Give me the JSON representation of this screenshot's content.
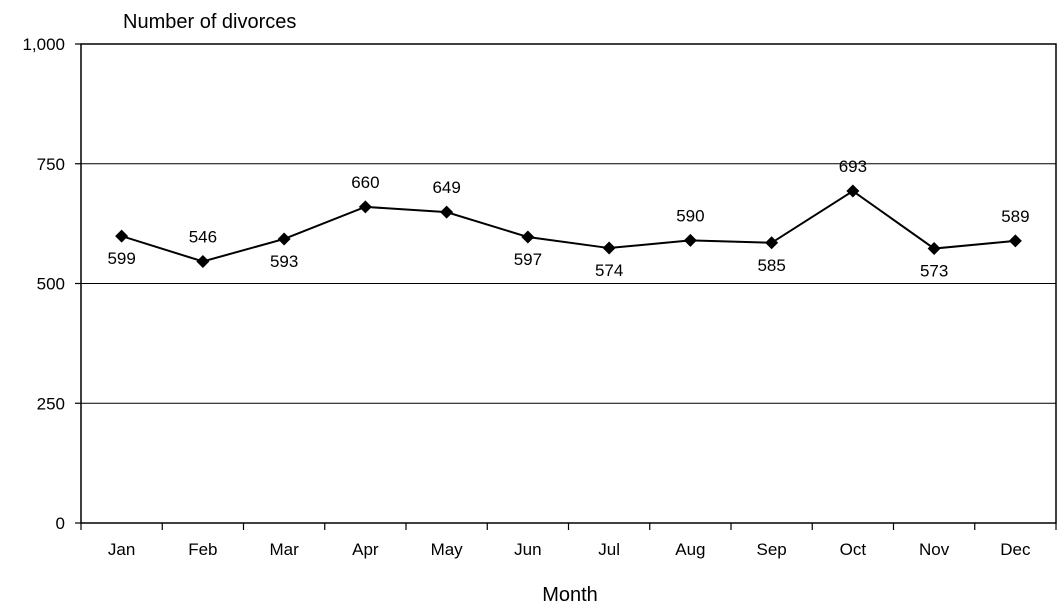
{
  "chart_data": {
    "type": "line",
    "title": "",
    "ylabel": "Number of divorces",
    "xlabel": "Month",
    "categories": [
      "Jan",
      "Feb",
      "Mar",
      "Apr",
      "May",
      "Jun",
      "Jul",
      "Aug",
      "Sep",
      "Oct",
      "Nov",
      "Dec"
    ],
    "series": [
      {
        "values": [
          599,
          546,
          593,
          660,
          649,
          597,
          574,
          590,
          585,
          693,
          573,
          589
        ],
        "marker": "diamond",
        "color": "#000000"
      }
    ],
    "data_labels": [
      "599",
      "546",
      "593",
      "660",
      "649",
      "597",
      "574",
      "590",
      "585",
      "693",
      "573",
      "589"
    ],
    "data_label_positions": [
      "below",
      "above",
      "below",
      "above",
      "above",
      "below",
      "below",
      "above",
      "below",
      "above",
      "below",
      "above"
    ],
    "ylim": [
      0,
      1000
    ],
    "yticks": [
      0,
      250,
      500,
      750,
      1000
    ],
    "ytick_labels": [
      "0",
      "250",
      "500",
      "750",
      "1,000"
    ],
    "grid": true,
    "legend": "none"
  }
}
